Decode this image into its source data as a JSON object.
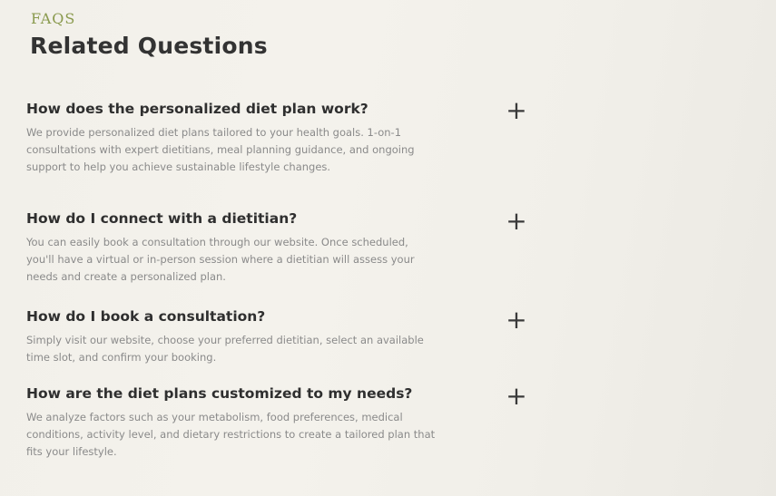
{
  "header": {
    "eyebrow": "FAQS",
    "title": "Related Questions"
  },
  "faqs": [
    {
      "question": "How does the personalized diet plan work?",
      "answer": "We provide personalized diet plans tailored to your health goals. 1-on-1 consultations with expert dietitians, meal planning guidance, and ongoing support to help you achieve sustainable lifestyle changes.",
      "toggle": "+"
    },
    {
      "question": "How do I connect with a dietitian?",
      "answer": "You can easily book a consultation through our website. Once scheduled, you'll have a virtual or in-person session where a dietitian will assess your needs and create a personalized plan.",
      "toggle": "+"
    },
    {
      "question": "How do I book a consultation?",
      "answer": "Simply visit our website, choose your preferred dietitian, select an available time slot, and confirm your booking.",
      "toggle": "+"
    },
    {
      "question": "How are the diet plans customized to my needs?",
      "answer": "We analyze factors such as your metabolism, food preferences, medical conditions, activity level, and dietary restrictions to create a tailored plan that fits your lifestyle.",
      "toggle": "+"
    }
  ]
}
